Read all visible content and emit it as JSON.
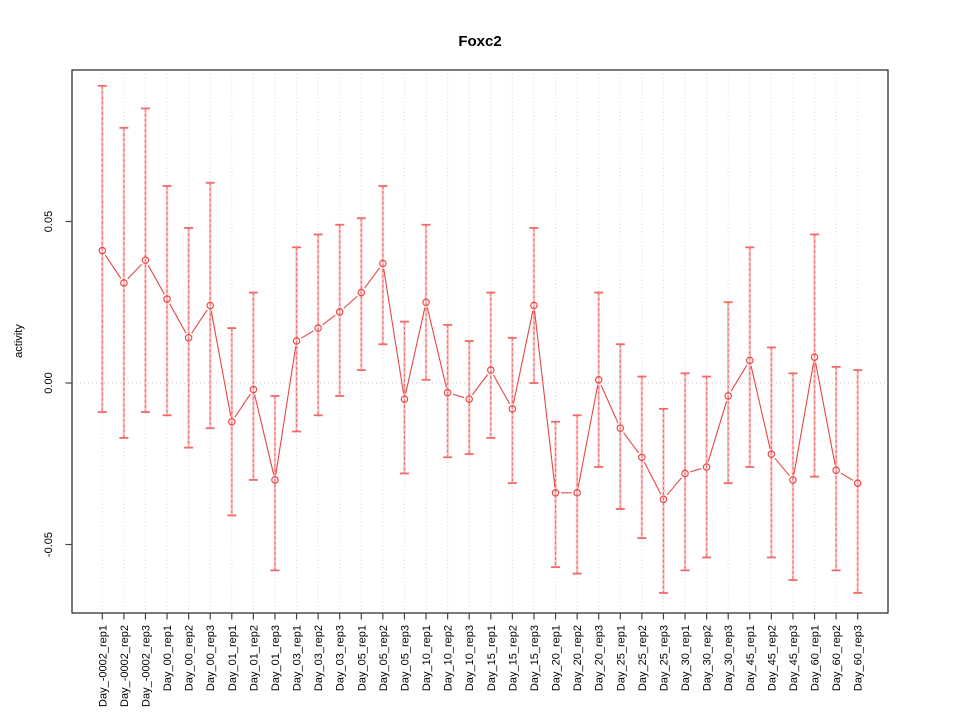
{
  "page": {
    "background": "#ffffff"
  },
  "chart_data": {
    "type": "line",
    "title": "Foxc2",
    "ylabel": "activity",
    "xlabel": "",
    "categories": [
      "Day_-0002_rep1",
      "Day_-0002_rep2",
      "Day_-0002_rep3",
      "Day_00_rep1",
      "Day_00_rep2",
      "Day_00_rep3",
      "Day_01_rep1",
      "Day_01_rep2",
      "Day_01_rep3",
      "Day_03_rep1",
      "Day_03_rep2",
      "Day_03_rep3",
      "Day_05_rep1",
      "Day_05_rep2",
      "Day_05_rep3",
      "Day_10_rep1",
      "Day_10_rep2",
      "Day_10_rep3",
      "Day_15_rep1",
      "Day_15_rep2",
      "Day_15_rep3",
      "Day_20_rep1",
      "Day_20_rep2",
      "Day_20_rep3",
      "Day_25_rep1",
      "Day_25_rep2",
      "Day_25_rep3",
      "Day_30_rep1",
      "Day_30_rep2",
      "Day_30_rep3",
      "Day_45_rep1",
      "Day_45_rep2",
      "Day_45_rep3",
      "Day_60_rep1",
      "Day_60_rep2",
      "Day_60_rep3"
    ],
    "series": [
      {
        "name": "activity",
        "marker": "open-circle",
        "values": [
          0.041,
          0.031,
          0.038,
          0.026,
          0.014,
          0.024,
          -0.012,
          -0.002,
          -0.03,
          0.013,
          0.017,
          0.022,
          0.028,
          0.037,
          -0.005,
          0.025,
          -0.003,
          -0.005,
          0.004,
          -0.008,
          0.024,
          -0.034,
          -0.034,
          0.001,
          -0.014,
          -0.023,
          -0.036,
          -0.028,
          -0.026,
          -0.004,
          0.007,
          -0.022,
          -0.03,
          0.008,
          -0.027,
          -0.031
        ],
        "err_high": [
          0.092,
          0.079,
          0.085,
          0.061,
          0.048,
          0.062,
          0.017,
          0.028,
          -0.004,
          0.042,
          0.046,
          0.049,
          0.051,
          0.061,
          0.019,
          0.049,
          0.018,
          0.013,
          0.028,
          0.014,
          0.048,
          -0.012,
          -0.01,
          0.028,
          0.012,
          0.002,
          -0.008,
          0.003,
          0.002,
          0.025,
          0.042,
          0.011,
          0.003,
          0.046,
          0.005,
          0.004
        ],
        "err_low": [
          -0.009,
          -0.017,
          -0.009,
          -0.01,
          -0.02,
          -0.014,
          -0.041,
          -0.03,
          -0.058,
          -0.015,
          -0.01,
          -0.004,
          0.004,
          0.012,
          -0.028,
          0.001,
          -0.023,
          -0.022,
          -0.017,
          -0.031,
          0.0,
          -0.057,
          -0.059,
          -0.026,
          -0.039,
          -0.048,
          -0.065,
          -0.058,
          -0.054,
          -0.031,
          -0.026,
          -0.054,
          -0.061,
          -0.029,
          -0.058,
          -0.065
        ]
      }
    ],
    "ytick_labels": [
      "-0.05",
      "0.00",
      "0.05"
    ],
    "ytick_values": [
      -0.05,
      0,
      0.05
    ],
    "ylim": [
      -0.0712,
      0.0969
    ],
    "legend": "none",
    "grid": {
      "vertical_dotted_per_category": true,
      "horizontal_dotted_at_zero": true
    },
    "colors": {
      "series": "#e84545",
      "error_bar_dash": "#e85454",
      "error_bar_band": "#ffb0b0",
      "error_cap": "#ef6a6a",
      "grid": "#d9d9d9",
      "zero_line": "#c9c9c9",
      "axis": "#222222",
      "tick": "#444444",
      "text": "#000000"
    }
  }
}
